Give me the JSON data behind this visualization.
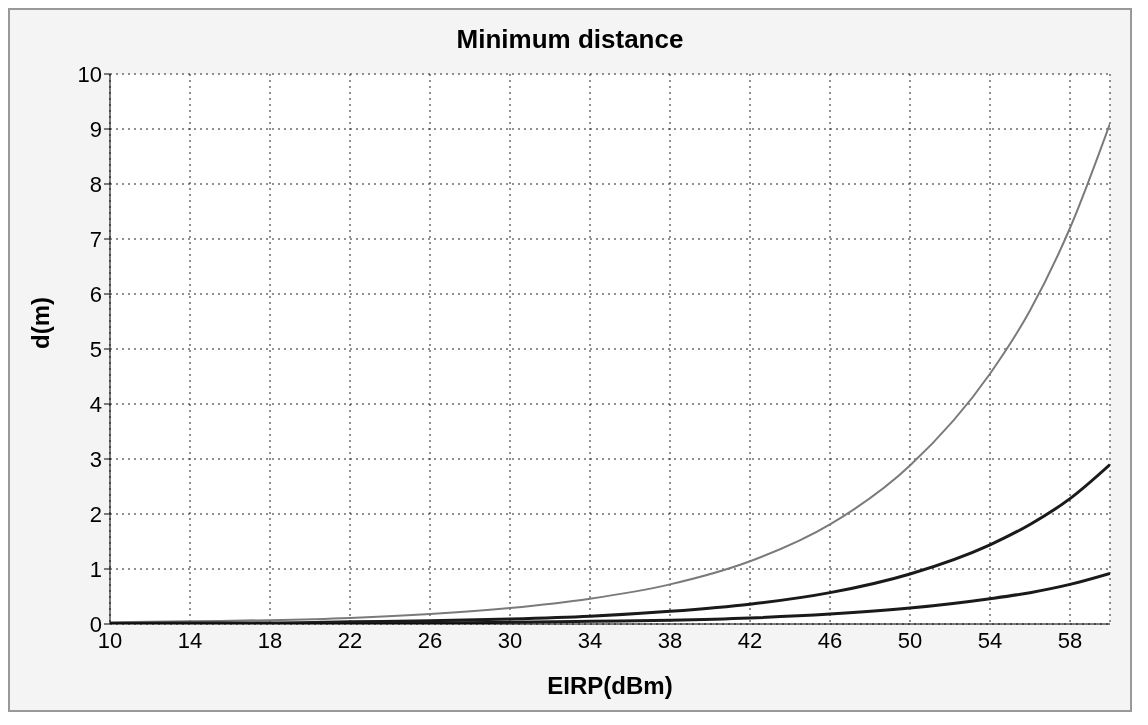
{
  "chart_data": {
    "type": "line",
    "title": "Minimum distance",
    "xlabel": "EIRP(dBm)",
    "ylabel": "d(m)",
    "x": [
      10,
      14,
      18,
      22,
      26,
      30,
      34,
      38,
      42,
      46,
      50,
      54,
      56,
      58,
      60
    ],
    "series": [
      {
        "color": "#7a7a7a",
        "values": [
          0.03,
          0.05,
          0.07,
          0.11,
          0.18,
          0.29,
          0.46,
          0.72,
          1.14,
          1.81,
          2.88,
          4.55,
          5.7,
          7.2,
          9.1
        ]
      },
      {
        "color": "#1a1a1a",
        "values": [
          0.01,
          0.02,
          0.02,
          0.04,
          0.06,
          0.09,
          0.14,
          0.23,
          0.36,
          0.57,
          0.91,
          1.44,
          1.81,
          2.28,
          2.9
        ]
      },
      {
        "color": "#1a1a1a",
        "values": [
          0,
          0.01,
          0.01,
          0.01,
          0.02,
          0.03,
          0.05,
          0.07,
          0.11,
          0.18,
          0.29,
          0.46,
          0.57,
          0.72,
          0.92
        ]
      }
    ],
    "xlim": [
      10,
      60
    ],
    "xticks": [
      10,
      14,
      18,
      22,
      26,
      30,
      34,
      38,
      42,
      46,
      50,
      54,
      58
    ],
    "ylim": [
      0,
      10
    ],
    "yticks": [
      0,
      1,
      2,
      3,
      4,
      5,
      6,
      7,
      8,
      9,
      10
    ],
    "grid": true,
    "marker": "none",
    "line_style": "solid",
    "legend": false
  }
}
